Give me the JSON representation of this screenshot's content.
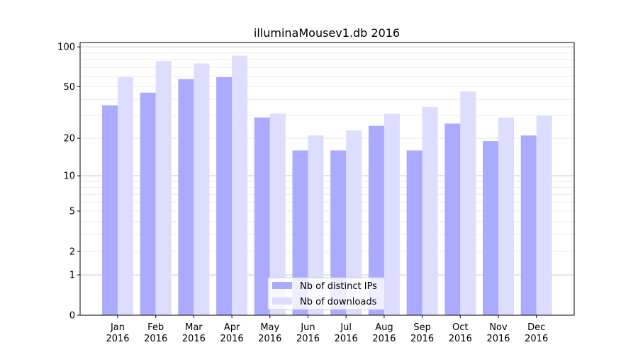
{
  "chart_data": {
    "type": "bar",
    "title": "illuminaMousev1.db 2016",
    "xlabel": "",
    "ylabel": "",
    "yscale": "symlog (log10(v+1))",
    "ylim": [
      0,
      110
    ],
    "yticks": [
      0,
      1,
      2,
      5,
      10,
      20,
      50,
      100
    ],
    "grid": "horizontal major and minor",
    "legend_position": "bottom-center",
    "categories": [
      "Jan\n2016",
      "Feb\n2016",
      "Mar\n2016",
      "Apr\n2016",
      "May\n2016",
      "Jun\n2016",
      "Jul\n2016",
      "Aug\n2016",
      "Sep\n2016",
      "Oct\n2016",
      "Nov\n2016",
      "Dec\n2016"
    ],
    "series": [
      {
        "name": "Nb of distinct IPs",
        "color": "#aaaaff",
        "values": [
          36,
          45,
          57,
          59,
          29,
          16,
          16,
          25,
          16,
          26,
          19,
          21
        ]
      },
      {
        "name": "Nb of downloads",
        "color": "#ddddff",
        "values": [
          59,
          78,
          75,
          86,
          31,
          21,
          23,
          31,
          35,
          46,
          29,
          30
        ]
      }
    ]
  }
}
